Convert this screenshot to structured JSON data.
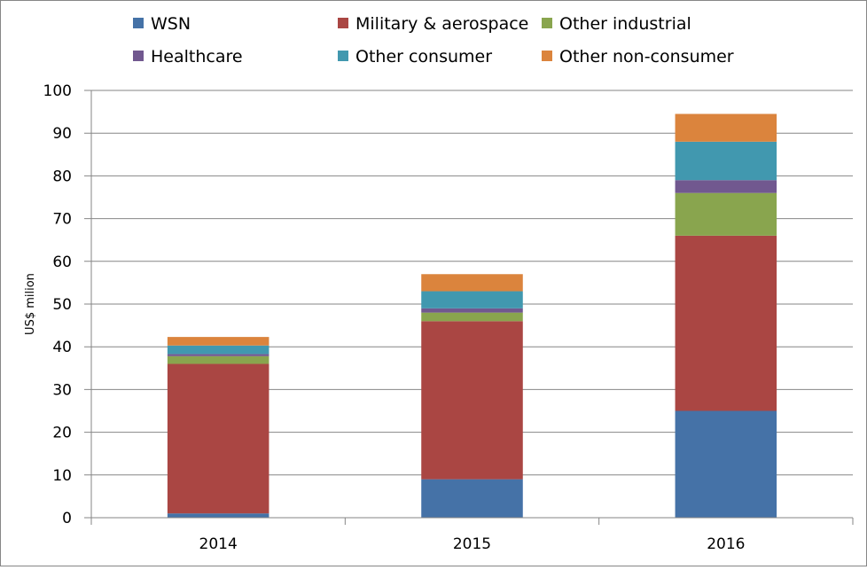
{
  "chart_data": {
    "type": "bar",
    "stacked": true,
    "title": "",
    "xlabel": "",
    "ylabel": "US$ milion",
    "ylim": [
      0,
      100
    ],
    "yticks": [
      0,
      10,
      20,
      30,
      40,
      50,
      60,
      70,
      80,
      90,
      100
    ],
    "grid": true,
    "legend_position": "top",
    "categories": [
      "2014",
      "2015",
      "2016"
    ],
    "series": [
      {
        "name": "WSN",
        "color": "#4572A7",
        "values": [
          1,
          9,
          25
        ]
      },
      {
        "name": "Military & aerospace",
        "color": "#AA4643",
        "values": [
          35,
          37,
          41
        ]
      },
      {
        "name": "Other industrial",
        "color": "#89A54E",
        "values": [
          1.8,
          2,
          10
        ]
      },
      {
        "name": "Healthcare",
        "color": "#71588F",
        "values": [
          0.5,
          1,
          3
        ]
      },
      {
        "name": "Other consumer",
        "color": "#4198AF",
        "values": [
          2,
          4,
          9
        ]
      },
      {
        "name": "Other non-consumer",
        "color": "#DB843D",
        "values": [
          2,
          4,
          6.5
        ]
      }
    ],
    "legend_order": [
      [
        "WSN",
        "Military & aerospace",
        "Other industrial"
      ],
      [
        "Healthcare",
        "Other consumer",
        "Other non-consumer"
      ]
    ]
  }
}
